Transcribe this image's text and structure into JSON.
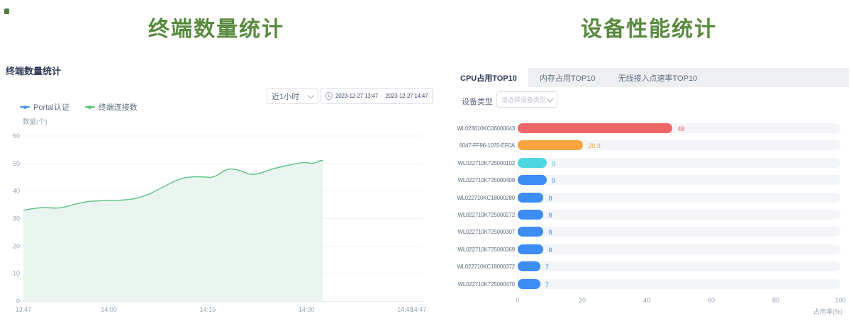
{
  "left": {
    "page_title": "终端数量统计",
    "section_title": "终端数量统计",
    "controls": {
      "range_value": "近1小时",
      "date_start": "2023-12-27 13:47",
      "date_separator": "-",
      "date_end": "2023-12-27 14:47"
    },
    "legend": [
      {
        "label": "Portal认证",
        "color": "#4b92f8"
      },
      {
        "label": "终端连接数",
        "color": "#5cc276"
      }
    ]
  },
  "right": {
    "page_title": "设备性能统计",
    "tabs": [
      {
        "label": "CPU占用TOP10",
        "active": true
      },
      {
        "label": "内存占用TOP10",
        "active": false
      },
      {
        "label": "无线接入点速率TOP10",
        "active": false
      }
    ],
    "filter": {
      "label": "设备类型",
      "placeholder": "请选择设备类型"
    }
  },
  "chart_data": [
    {
      "type": "area",
      "title": "终端数量统计",
      "ylabel": "数量(个)",
      "ylim": [
        0,
        60
      ],
      "yticks": [
        0,
        10,
        20,
        30,
        40,
        50,
        60
      ],
      "grid": true,
      "legend_position": "top-left",
      "x_ticks": [
        {
          "label": "13:47",
          "minute": 0
        },
        {
          "label": "14:00",
          "minute": 13
        },
        {
          "label": "14:15",
          "minute": 28
        },
        {
          "label": "14:30",
          "minute": 43
        },
        {
          "label": "14:45",
          "minute": 58
        },
        {
          "label": "14:47",
          "minute": 60
        }
      ],
      "x_range_minutes": [
        0,
        60
      ],
      "series": [
        {
          "name": "Portal认证",
          "color": "#4b92f8",
          "points": []
        },
        {
          "name": "终端连接数",
          "color": "#66c48a",
          "fill": "#e9f5ee",
          "points": [
            [
              0,
              33
            ],
            [
              1.5,
              33.6
            ],
            [
              3,
              34
            ],
            [
              5,
              33.8
            ],
            [
              6.5,
              34.3
            ],
            [
              8,
              35.3
            ],
            [
              10,
              36.2
            ],
            [
              12,
              36.5
            ],
            [
              14,
              36.6
            ],
            [
              15.5,
              36.8
            ],
            [
              17,
              37.3
            ],
            [
              19,
              38.8
            ],
            [
              21,
              41.2
            ],
            [
              23,
              43.6
            ],
            [
              24.5,
              44.8
            ],
            [
              26,
              45.2
            ],
            [
              27.5,
              45.1
            ],
            [
              28.5,
              45
            ],
            [
              29.5,
              45.8
            ],
            [
              30.5,
              47.4
            ],
            [
              31.5,
              48
            ],
            [
              32.5,
              47.7
            ],
            [
              33.5,
              46.8
            ],
            [
              34.5,
              46.1
            ],
            [
              35.5,
              46.2
            ],
            [
              36.5,
              46.9
            ],
            [
              37.5,
              47.8
            ],
            [
              39,
              48.7
            ],
            [
              40.5,
              49.5
            ],
            [
              42,
              50.2
            ],
            [
              43,
              50.3
            ],
            [
              43.8,
              50.1
            ],
            [
              44.5,
              50.4
            ],
            [
              45,
              51
            ],
            [
              45.5,
              51.1
            ]
          ]
        }
      ]
    },
    {
      "type": "bar",
      "orientation": "horizontal",
      "title": "CPU占用TOP10",
      "xlabel": "占用率(%)",
      "xlim": [
        0,
        100
      ],
      "xticks": [
        0,
        20,
        40,
        60,
        80,
        100
      ],
      "categories": [
        "WL023610KC06000043",
        "6047-FF96-1070-EF0A",
        "WL022710K725000102",
        "WL022710K725000409",
        "WL022710KC18000280",
        "WL022710K725000272",
        "WL022710K725000307",
        "WL022710K725000369",
        "WL022710KC18000372",
        "WL022710K725000470"
      ],
      "values": [
        48,
        20.3,
        9,
        9,
        8,
        8,
        8,
        8,
        7,
        7
      ],
      "bar_colors": [
        "#ee6666",
        "#f8a441",
        "#4dd8e1",
        "#3d8df6",
        "#3d8df6",
        "#3d8df6",
        "#3d8df6",
        "#3d8df6",
        "#3d8df6",
        "#3d8df6"
      ],
      "value_label_colors": [
        "#ee6666",
        "#f8a441",
        "#3fc6d4",
        "#3d8df6",
        "#3d8df6",
        "#3d8df6",
        "#3d8df6",
        "#3d8df6",
        "#3d8df6",
        "#3d8df6"
      ]
    }
  ]
}
